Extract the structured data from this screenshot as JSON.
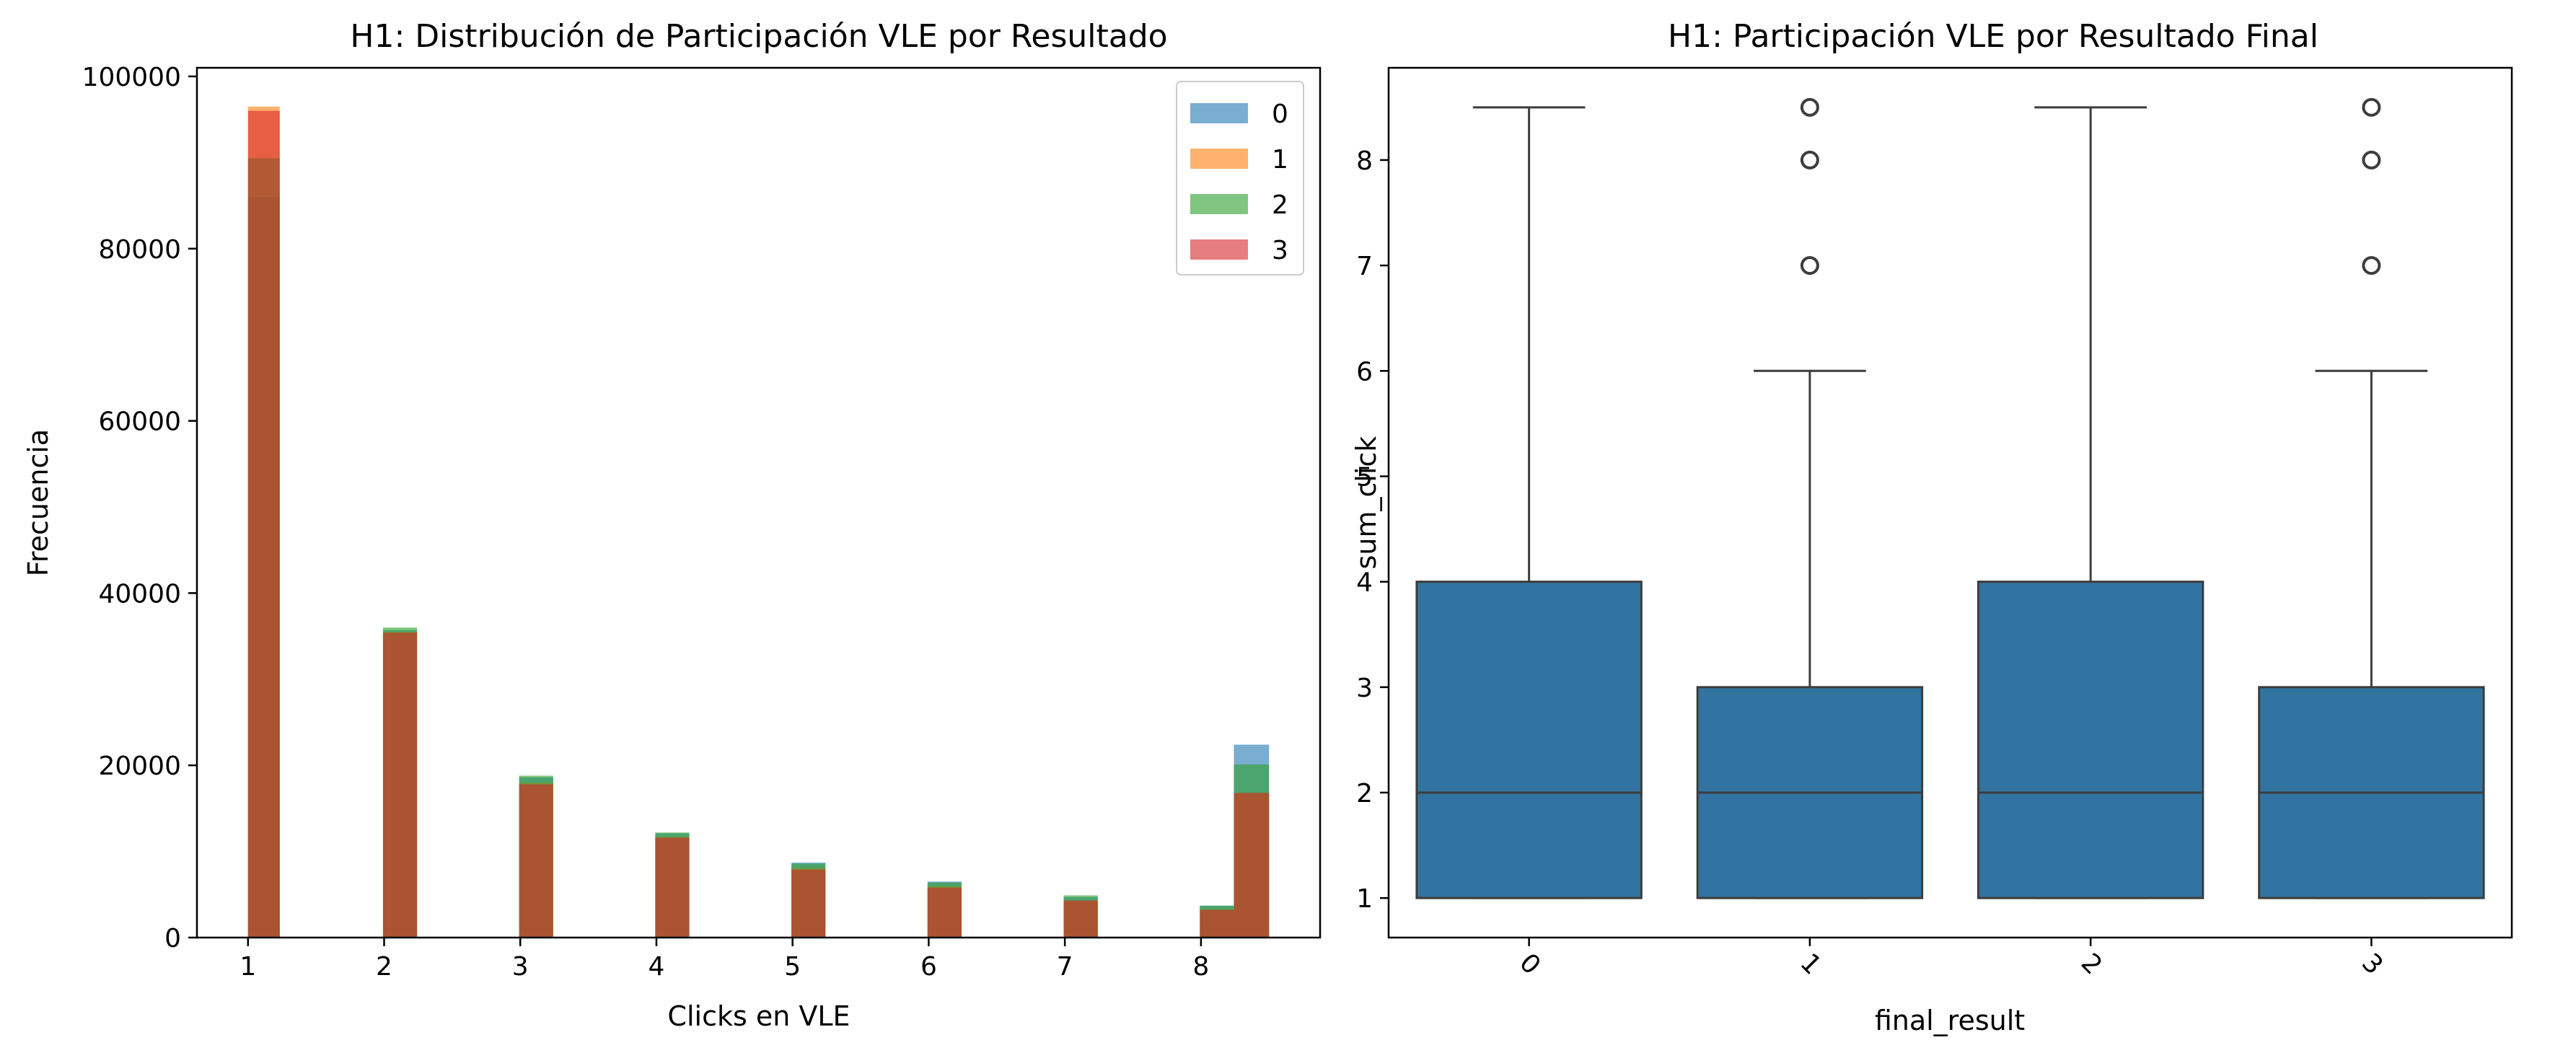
{
  "chart_data": [
    {
      "type": "histogram",
      "title": "H1: Distribución de Participación VLE por Resultado",
      "xlabel": "Clicks en VLE",
      "ylabel": "Frecuencia",
      "xlim": [
        0.625,
        8.875
      ],
      "ylim": [
        0,
        101000
      ],
      "xticks": [
        "1",
        "2",
        "3",
        "4",
        "5",
        "6",
        "7",
        "8"
      ],
      "yticks": [
        "0",
        "20000",
        "40000",
        "60000",
        "80000",
        "100000"
      ],
      "legend": "top-right",
      "bins": [
        {
          "start": 1.0,
          "end": 1.2333
        },
        {
          "start": 1.9917,
          "end": 2.2417
        },
        {
          "start": 2.9917,
          "end": 3.2417
        },
        {
          "start": 3.9917,
          "end": 4.2417
        },
        {
          "start": 4.9917,
          "end": 5.2417
        },
        {
          "start": 5.9917,
          "end": 6.2417
        },
        {
          "start": 6.9917,
          "end": 7.2417
        },
        {
          "start": 7.9917,
          "end": 8.2417
        },
        {
          "start": 8.2417,
          "end": 8.5
        }
      ],
      "series": [
        {
          "name": "0",
          "color": "#1f77b4",
          "values": [
            86000,
            35700,
            18600,
            12100,
            8700,
            6500,
            4700,
            3700,
            22400
          ]
        },
        {
          "name": "1",
          "color": "#ff7f0e",
          "values": [
            96500,
            35500,
            18000,
            11700,
            8100,
            6000,
            4300,
            3300,
            16800
          ]
        },
        {
          "name": "2",
          "color": "#2ca02c",
          "values": [
            90500,
            36000,
            18800,
            12200,
            8600,
            6400,
            4900,
            3700,
            20100
          ]
        },
        {
          "name": "3",
          "color": "#d62728",
          "values": [
            96000,
            35400,
            17800,
            11600,
            7900,
            5800,
            4300,
            3200,
            16800
          ]
        }
      ]
    },
    {
      "type": "box",
      "title": "H1: Participación VLE por Resultado Final",
      "xlabel": "final_result",
      "ylabel": "sum_click",
      "ylim": [
        0.625,
        8.875
      ],
      "yticks": [
        "1",
        "2",
        "3",
        "4",
        "5",
        "6",
        "7",
        "8"
      ],
      "categories": [
        "0",
        "1",
        "2",
        "3"
      ],
      "color": "#3274a1",
      "boxes": [
        {
          "category": "0",
          "whisker_low": 1,
          "q1": 1,
          "median": 2,
          "q3": 4,
          "whisker_high": 8.5,
          "outliers": []
        },
        {
          "category": "1",
          "whisker_low": 1,
          "q1": 1,
          "median": 2,
          "q3": 3,
          "whisker_high": 6,
          "outliers": [
            7,
            8,
            8.5
          ]
        },
        {
          "category": "2",
          "whisker_low": 1,
          "q1": 1,
          "median": 2,
          "q3": 4,
          "whisker_high": 8.5,
          "outliers": []
        },
        {
          "category": "3",
          "whisker_low": 1,
          "q1": 1,
          "median": 2,
          "q3": 3,
          "whisker_high": 6,
          "outliers": [
            7,
            8,
            8.5
          ]
        }
      ]
    }
  ]
}
